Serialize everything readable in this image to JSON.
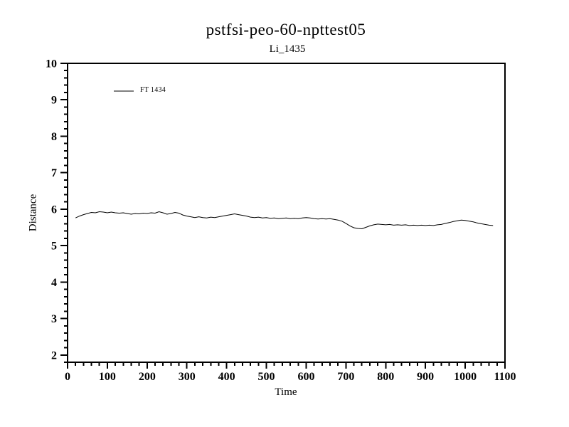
{
  "title": "pstfsi-peo-60-npttest05",
  "subtitle": "Li_1435",
  "colors": {
    "foreground": "#000000",
    "background": "#ffffff"
  },
  "chart_data": {
    "type": "line",
    "title": "pstfsi-peo-60-npttest05",
    "subtitle": "Li_1435",
    "xlabel": "Time",
    "ylabel": "Distance",
    "xlim": [
      0,
      1100
    ],
    "ylim": [
      1.8,
      10
    ],
    "x_major_step": 100,
    "x_minor_step": 20,
    "y_major_step": 1,
    "y_minor_step": 0.2,
    "y_major_start": 2,
    "grid": false,
    "legend": {
      "position": "top-left-inside",
      "entries": [
        "FT 1434"
      ]
    },
    "series": [
      {
        "name": "FT 1434",
        "color": "#000000",
        "x": [
          20,
          30,
          40,
          50,
          60,
          70,
          80,
          90,
          100,
          110,
          120,
          130,
          140,
          150,
          160,
          170,
          180,
          190,
          200,
          210,
          220,
          230,
          240,
          250,
          260,
          270,
          280,
          290,
          300,
          310,
          320,
          330,
          340,
          350,
          360,
          370,
          380,
          390,
          400,
          410,
          420,
          430,
          440,
          450,
          460,
          470,
          480,
          490,
          500,
          510,
          520,
          530,
          540,
          550,
          560,
          570,
          580,
          590,
          600,
          610,
          620,
          630,
          640,
          650,
          660,
          670,
          680,
          690,
          700,
          710,
          720,
          730,
          740,
          750,
          760,
          770,
          780,
          790,
          800,
          810,
          820,
          830,
          840,
          850,
          860,
          870,
          880,
          890,
          900,
          910,
          920,
          930,
          940,
          950,
          960,
          970,
          980,
          990,
          1000,
          1010,
          1020,
          1030,
          1040,
          1050,
          1060,
          1070
        ],
        "y": [
          5.76,
          5.81,
          5.85,
          5.88,
          5.91,
          5.9,
          5.93,
          5.92,
          5.9,
          5.92,
          5.9,
          5.89,
          5.9,
          5.88,
          5.86,
          5.88,
          5.87,
          5.89,
          5.88,
          5.9,
          5.89,
          5.93,
          5.9,
          5.86,
          5.88,
          5.91,
          5.89,
          5.84,
          5.81,
          5.79,
          5.77,
          5.79,
          5.77,
          5.76,
          5.78,
          5.77,
          5.79,
          5.81,
          5.83,
          5.85,
          5.87,
          5.85,
          5.83,
          5.81,
          5.78,
          5.77,
          5.78,
          5.76,
          5.77,
          5.75,
          5.76,
          5.74,
          5.75,
          5.76,
          5.74,
          5.75,
          5.74,
          5.76,
          5.77,
          5.76,
          5.74,
          5.73,
          5.74,
          5.73,
          5.74,
          5.72,
          5.7,
          5.67,
          5.61,
          5.54,
          5.49,
          5.47,
          5.46,
          5.5,
          5.54,
          5.57,
          5.59,
          5.58,
          5.57,
          5.58,
          5.56,
          5.57,
          5.56,
          5.57,
          5.55,
          5.56,
          5.55,
          5.56,
          5.55,
          5.56,
          5.55,
          5.57,
          5.58,
          5.61,
          5.63,
          5.66,
          5.68,
          5.7,
          5.69,
          5.67,
          5.65,
          5.62,
          5.6,
          5.58,
          5.56,
          5.55
        ]
      }
    ]
  }
}
